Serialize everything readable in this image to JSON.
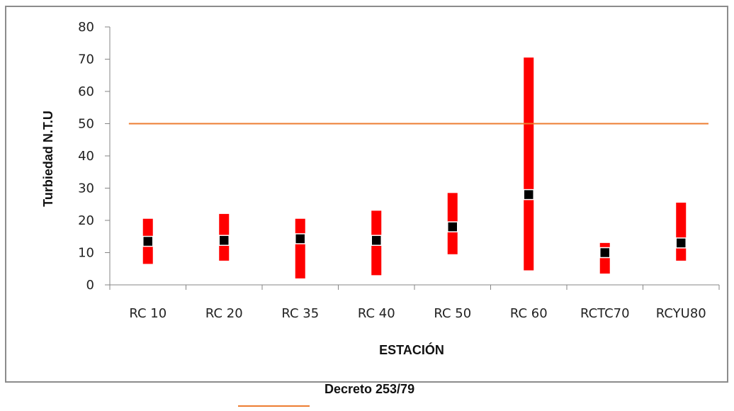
{
  "chart_data": {
    "type": "range",
    "xlabel": "ESTACIÓN",
    "ylabel": "Turbiedad N.T.U",
    "ylim": [
      0,
      80
    ],
    "yticks": [
      0,
      10,
      20,
      30,
      40,
      50,
      60,
      70,
      80
    ],
    "grid": false,
    "categories": [
      "RC 10",
      "RC 20",
      "RC 35",
      "RC 40",
      "RC 50",
      "RC 60",
      "RCTC70",
      "RCYU80"
    ],
    "series": [
      {
        "min": [
          6.5,
          7.5,
          2.0,
          3.0,
          9.5,
          4.5,
          3.5,
          7.5
        ],
        "max": [
          20.5,
          22.0,
          20.5,
          23.0,
          28.5,
          70.5,
          13.0,
          25.5
        ],
        "mean": [
          13.5,
          13.8,
          14.3,
          13.8,
          18.0,
          28.0,
          10.0,
          13.0
        ],
        "color": "#ff0000",
        "mean_color": "#000000"
      },
      {
        "name": "Decreto 253/79",
        "type": "hline",
        "value": 50,
        "color": "#ed7d31"
      }
    ],
    "legend": {
      "position": "bottom",
      "entries": [
        "Decreto 253/79"
      ]
    }
  }
}
